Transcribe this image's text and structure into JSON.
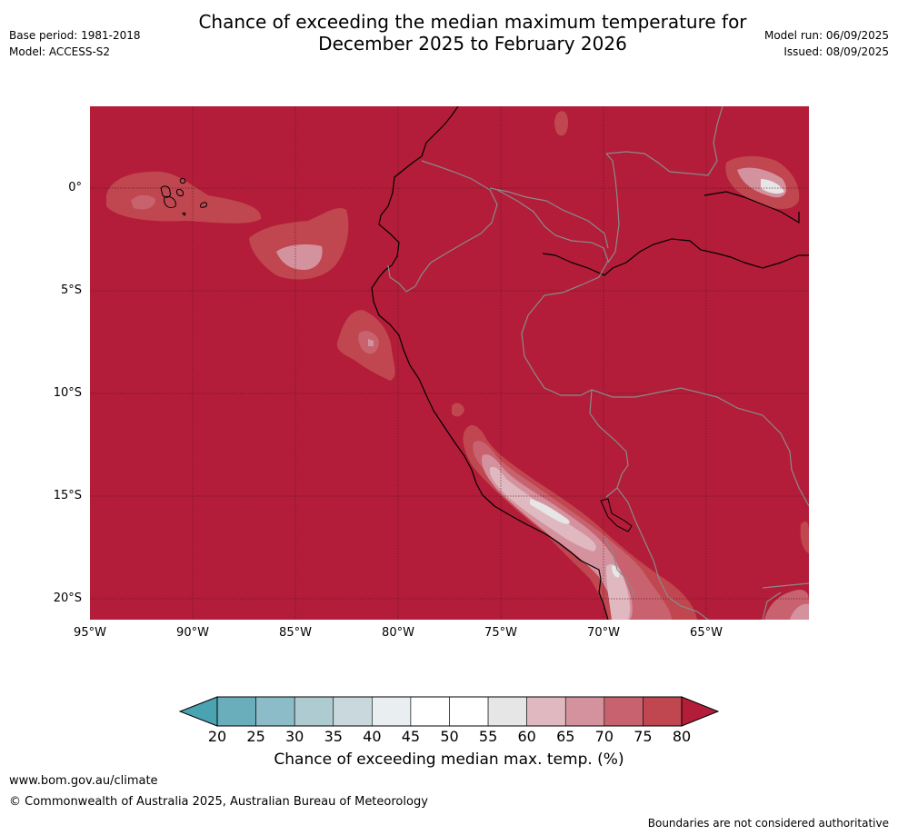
{
  "title": {
    "line1": "Chance of exceeding the median maximum temperature for",
    "line2": "December 2025 to February 2026"
  },
  "meta": {
    "base_period": "Base period: 1981-2018",
    "model": "Model: ACCESS-S2",
    "model_run": "Model run: 06/09/2025",
    "issued": "Issued: 08/09/2025"
  },
  "map": {
    "background_color": "#b31d39",
    "lat_labels": [
      "0°",
      "5°S",
      "10°S",
      "15°S",
      "20°S"
    ],
    "lon_labels": [
      "95°W",
      "90°W",
      "85°W",
      "80°W",
      "75°W",
      "70°W",
      "65°W"
    ]
  },
  "colorbar": {
    "colors": [
      "#6aadbb",
      "#8cbcc7",
      "#adcbd1",
      "#c8d8dc",
      "#e9eff1",
      "#ffffff",
      "#ffffff",
      "#e6e6e6",
      "#e0b9c0",
      "#d4929e",
      "#c9626f",
      "#c0474f"
    ],
    "low_color": "#4aa3b0",
    "high_color": "#b31d39",
    "ticks": [
      "20",
      "25",
      "30",
      "35",
      "40",
      "45",
      "50",
      "55",
      "60",
      "65",
      "70",
      "75",
      "80"
    ],
    "label": "Chance of exceeding median max. temp. (%)"
  },
  "footer": {
    "url": "www.bom.gov.au/climate",
    "copyright": "© Commonwealth of Australia 2025, Australian Bureau of Meteorology",
    "note": "Boundaries are not considered authoritative"
  }
}
